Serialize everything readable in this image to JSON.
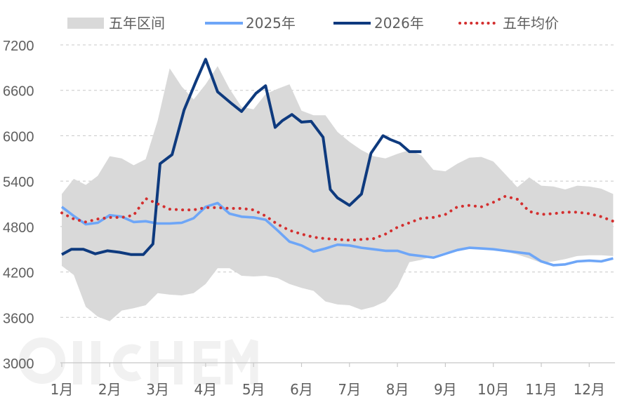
{
  "chart_data": {
    "type": "line",
    "title": "",
    "xlabel": "",
    "ylabel": "",
    "ylim": [
      3000,
      7200
    ],
    "yticks": [
      3000,
      3600,
      4200,
      4800,
      5400,
      6000,
      6600,
      7200
    ],
    "categories": [
      "1月",
      "2月",
      "3月",
      "4月",
      "5月",
      "6月",
      "7月",
      "8月",
      "9月",
      "10月",
      "11月",
      "12月"
    ],
    "grid": "horizontal dashed",
    "legend_position": "top",
    "watermark": "OilChem",
    "series": [
      {
        "name": "五年区间",
        "kind": "band",
        "color": "#d9d9d9",
        "x": [
          0,
          0.25,
          0.5,
          0.75,
          1,
          1.25,
          1.5,
          1.75,
          2,
          2.25,
          2.5,
          2.75,
          3,
          3.25,
          3.5,
          3.75,
          4,
          4.25,
          4.5,
          4.75,
          5,
          5.25,
          5.5,
          5.75,
          6,
          6.25,
          6.5,
          6.75,
          7,
          7.25,
          7.5,
          7.75,
          8,
          8.25,
          8.5,
          8.75,
          9,
          9.25,
          9.5,
          9.75,
          10,
          10.25,
          10.5,
          10.75,
          11,
          11.25,
          11.5
        ],
        "upper": [
          5230,
          5430,
          5350,
          5470,
          5730,
          5700,
          5610,
          5690,
          6200,
          6890,
          6650,
          6480,
          6680,
          6920,
          6620,
          6380,
          6350,
          6550,
          6620,
          6680,
          6330,
          6270,
          6270,
          6050,
          5920,
          5810,
          5730,
          5700,
          5760,
          5810,
          5740,
          5550,
          5530,
          5630,
          5710,
          5720,
          5660,
          5490,
          5320,
          5450,
          5340,
          5330,
          5290,
          5340,
          5330,
          5300,
          5230
        ],
        "lower": [
          4280,
          4160,
          3740,
          3610,
          3550,
          3690,
          3720,
          3760,
          3920,
          3900,
          3890,
          3920,
          4040,
          4250,
          4250,
          4150,
          4140,
          4150,
          4120,
          4040,
          3990,
          3950,
          3810,
          3770,
          3760,
          3700,
          3740,
          3810,
          4000,
          4330,
          4360,
          4410,
          4460,
          4500,
          4520,
          4510,
          4490,
          4470,
          4430,
          4380,
          4320,
          4340,
          4370,
          4410,
          4420,
          4420,
          4410
        ]
      },
      {
        "name": "2025年",
        "kind": "line",
        "color": "#6ea6f7",
        "x": [
          0,
          0.25,
          0.5,
          0.75,
          1,
          1.25,
          1.5,
          1.75,
          2,
          2.25,
          2.5,
          2.75,
          3,
          3.25,
          3.5,
          3.75,
          4,
          4.25,
          4.5,
          4.75,
          5,
          5.25,
          5.5,
          5.75,
          6,
          6.25,
          6.5,
          6.75,
          7,
          7.25,
          7.5,
          7.75,
          8,
          8.25,
          8.5,
          8.75,
          9,
          9.25,
          9.5,
          9.75,
          10,
          10.25,
          10.5,
          10.75,
          11,
          11.25,
          11.5
        ],
        "values": [
          5060,
          4940,
          4830,
          4850,
          4950,
          4930,
          4860,
          4870,
          4840,
          4840,
          4850,
          4910,
          5060,
          5110,
          4970,
          4930,
          4920,
          4890,
          4750,
          4600,
          4550,
          4470,
          4510,
          4560,
          4550,
          4520,
          4500,
          4480,
          4480,
          4430,
          4410,
          4390,
          4440,
          4490,
          4520,
          4510,
          4500,
          4480,
          4460,
          4440,
          4340,
          4290,
          4300,
          4340,
          4350,
          4340,
          4380
        ]
      },
      {
        "name": "2026年",
        "kind": "line",
        "color": "#0e3a7e",
        "x": [
          0,
          0.2,
          0.45,
          0.7,
          0.95,
          1.2,
          1.45,
          1.7,
          1.9,
          2.05,
          2.3,
          2.55,
          2.8,
          3.0,
          3.25,
          3.55,
          3.75,
          4.05,
          4.25,
          4.45,
          4.6,
          4.8,
          5.0,
          5.2,
          5.45,
          5.6,
          5.75,
          6.0,
          6.25,
          6.45,
          6.7,
          6.85,
          7.05,
          7.25,
          7.5
        ],
        "values": [
          4430,
          4500,
          4500,
          4440,
          4480,
          4460,
          4430,
          4430,
          4570,
          5630,
          5750,
          6340,
          6720,
          7010,
          6580,
          6420,
          6320,
          6560,
          6660,
          6110,
          6200,
          6280,
          6180,
          6190,
          5980,
          5290,
          5180,
          5080,
          5230,
          5770,
          6000,
          5950,
          5900,
          5790,
          5790
        ]
      },
      {
        "name": "五年均价",
        "kind": "dotted",
        "color": "#d32f2f",
        "x": [
          0,
          0.25,
          0.5,
          0.75,
          1,
          1.25,
          1.5,
          1.75,
          2,
          2.25,
          2.5,
          2.75,
          3,
          3.25,
          3.5,
          3.75,
          4,
          4.25,
          4.5,
          4.75,
          5,
          5.25,
          5.5,
          5.75,
          6,
          6.25,
          6.5,
          6.75,
          7,
          7.25,
          7.5,
          7.75,
          8,
          8.25,
          8.5,
          8.75,
          9,
          9.25,
          9.5,
          9.75,
          10,
          10.25,
          10.5,
          10.75,
          11,
          11.25,
          11.5
        ],
        "values": [
          4980,
          4900,
          4860,
          4900,
          4920,
          4920,
          4950,
          5170,
          5100,
          5030,
          5020,
          5020,
          5050,
          5050,
          5040,
          5040,
          5020,
          4940,
          4830,
          4750,
          4700,
          4660,
          4640,
          4630,
          4620,
          4630,
          4640,
          4700,
          4790,
          4850,
          4910,
          4920,
          4960,
          5060,
          5080,
          5060,
          5120,
          5200,
          5160,
          5000,
          4960,
          4970,
          4990,
          4990,
          4970,
          4930,
          4870
        ]
      }
    ]
  }
}
